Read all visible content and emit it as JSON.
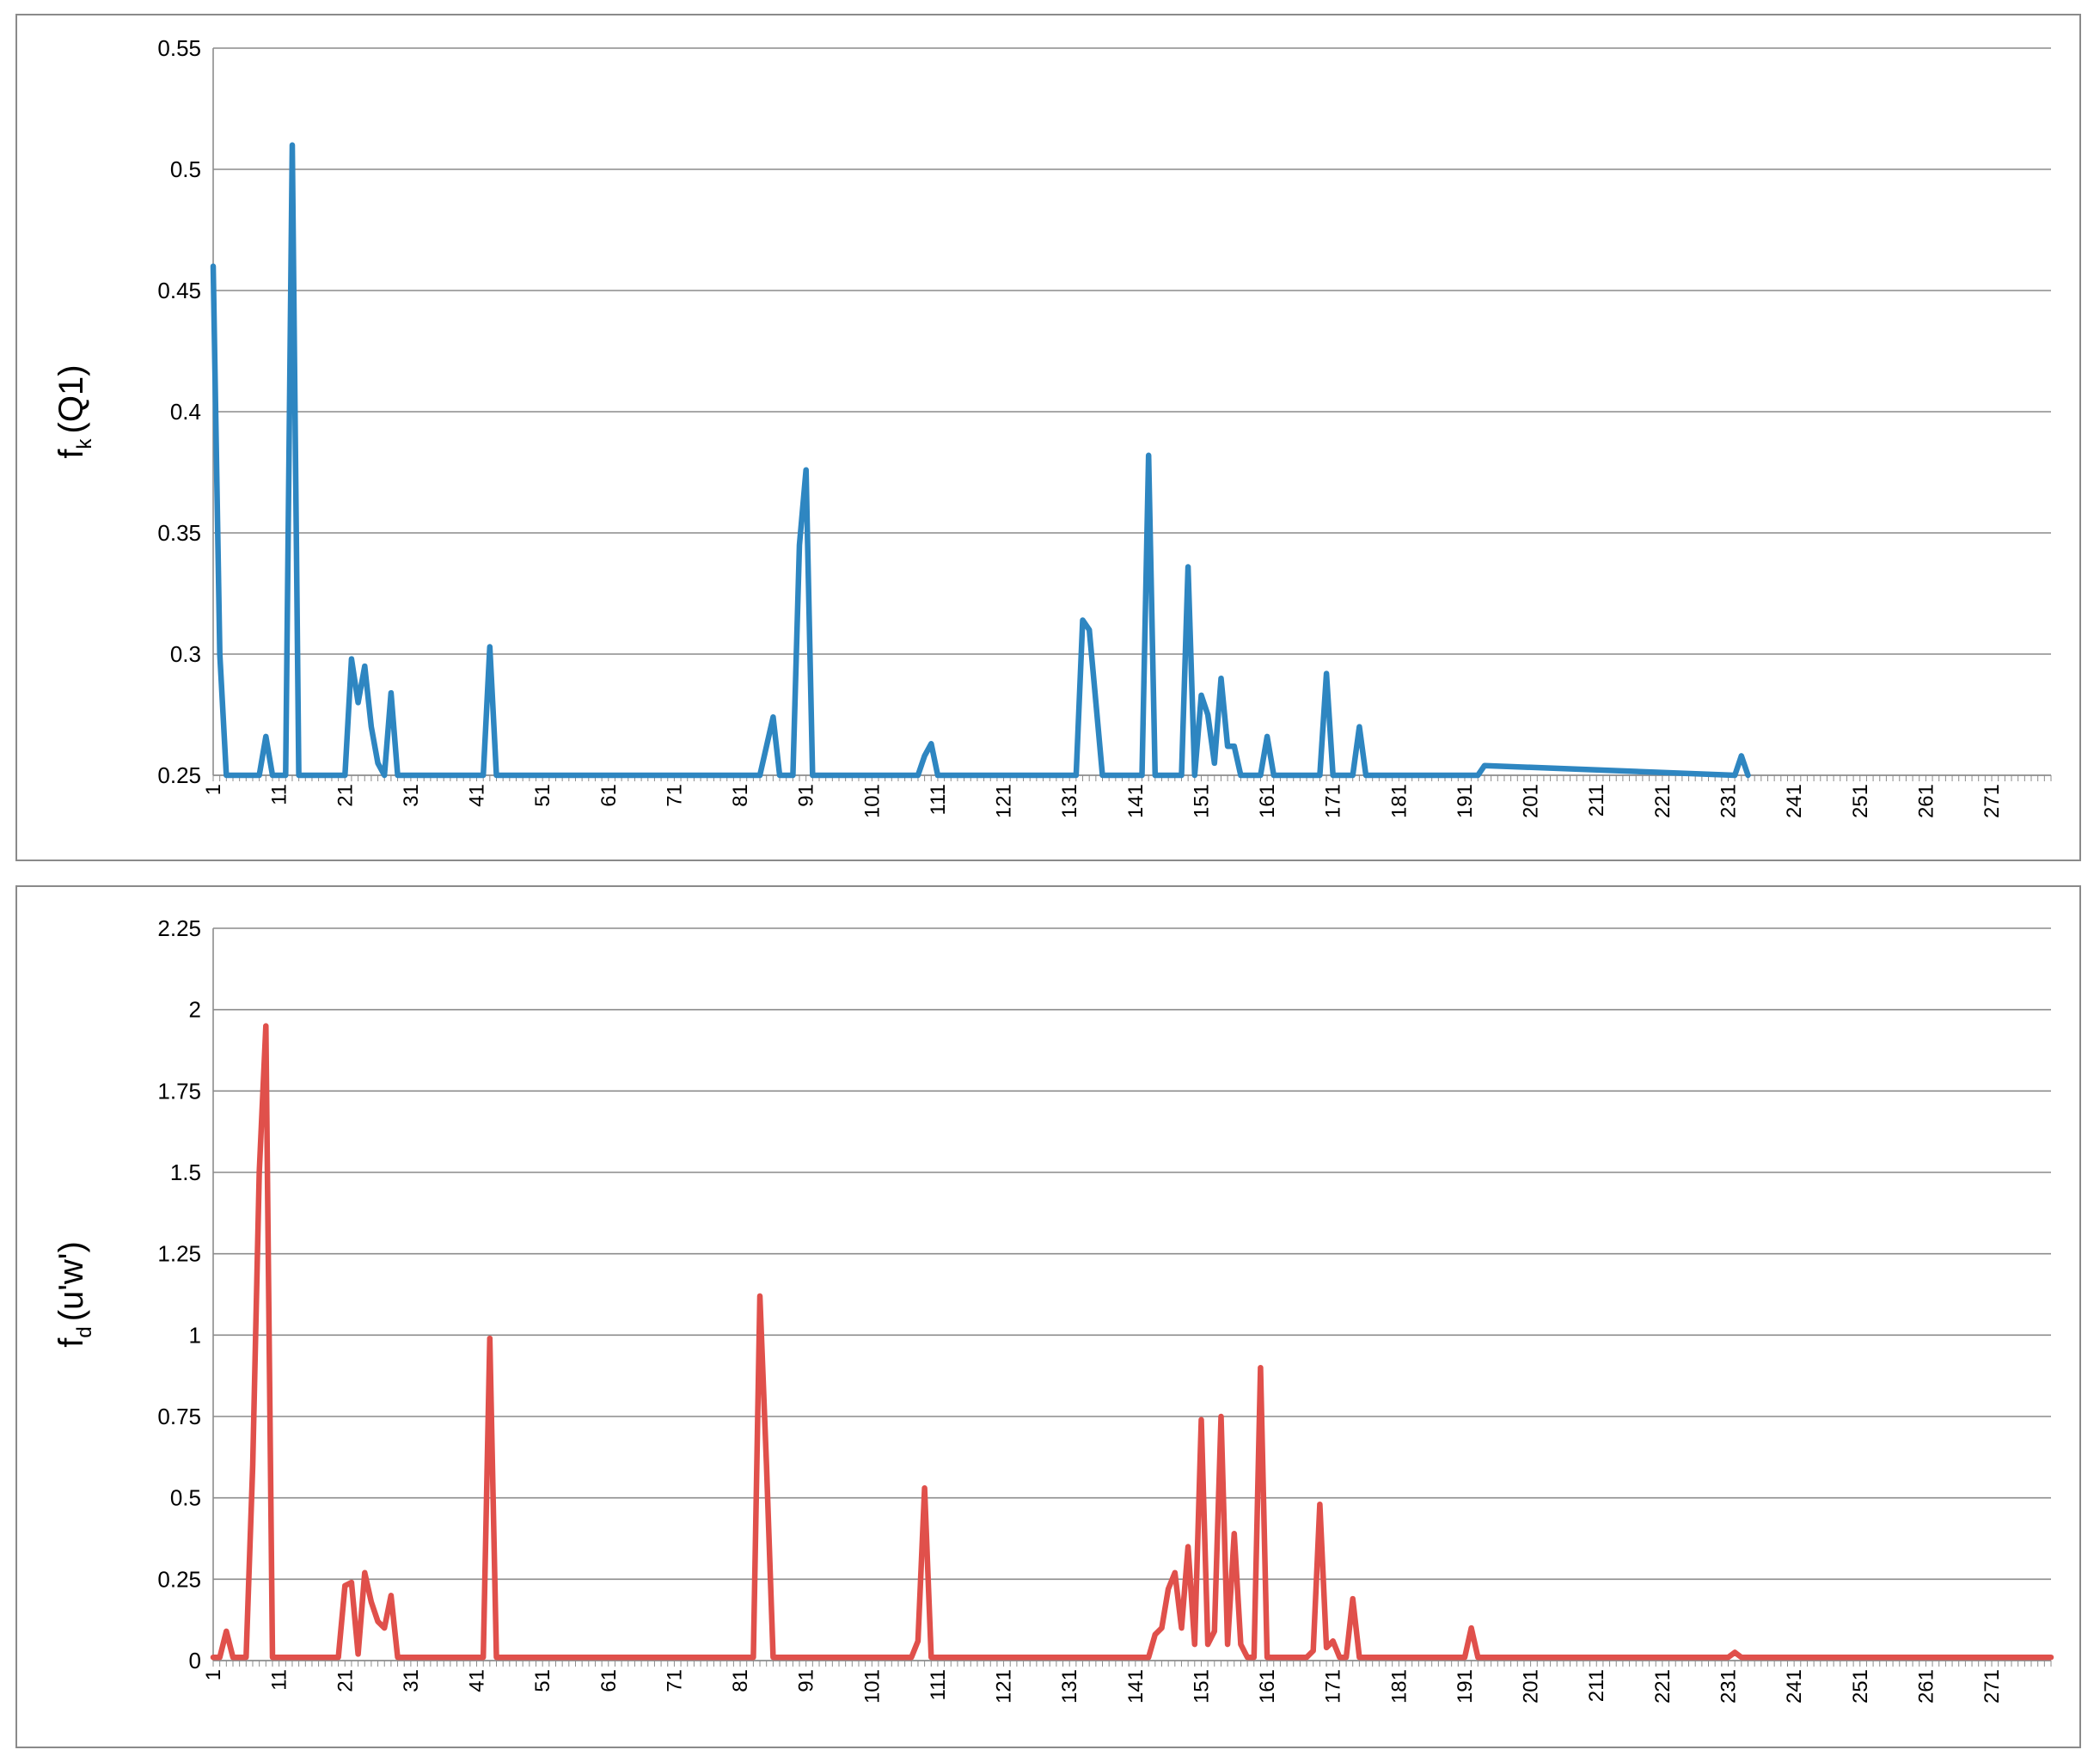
{
  "chart_data": [
    {
      "type": "line",
      "ylabel_main": "f",
      "ylabel_sub": "k",
      "ylabel_rest": "(Q1)",
      "color": "#2e86c1",
      "ylim": [
        0.25,
        0.55
      ],
      "yticks": [
        0.25,
        0.3,
        0.35,
        0.4,
        0.45,
        0.5,
        0.55
      ],
      "ytick_labels": [
        "0.25",
        "0.3",
        "0.35",
        "0.4",
        "0.45",
        "0.5",
        "0.55"
      ],
      "xlim": [
        1,
        280
      ],
      "xticks": [
        1,
        11,
        21,
        31,
        41,
        51,
        61,
        71,
        81,
        91,
        101,
        111,
        121,
        131,
        141,
        151,
        161,
        171,
        181,
        191,
        201,
        211,
        221,
        231,
        241,
        251,
        261,
        271
      ],
      "xtick_labels": [
        "1",
        "11",
        "21",
        "31",
        "41",
        "51",
        "61",
        "71",
        "81",
        "91",
        "101",
        "111",
        "121",
        "131",
        "141",
        "151",
        "161",
        "171",
        "181",
        "191",
        "201",
        "211",
        "221",
        "231",
        "241",
        "251",
        "261",
        "271"
      ],
      "grid": true,
      "series": [
        {
          "x": [
            1,
            2,
            3,
            8,
            9,
            10,
            12,
            13,
            14,
            21,
            22,
            23,
            24,
            25,
            26,
            27,
            28,
            29,
            42,
            43,
            44,
            84,
            85,
            86,
            87,
            89,
            90,
            91,
            92,
            108,
            109,
            110,
            111,
            132,
            133,
            134,
            135,
            136,
            142,
            143,
            144,
            148,
            149,
            150,
            151,
            152,
            153,
            154,
            155,
            156,
            157,
            158,
            160,
            161,
            162,
            169,
            170,
            171,
            174,
            175,
            176,
            193,
            194,
            232,
            233,
            234
          ],
          "y": [
            0.46,
            0.3,
            0.25,
            0.25,
            0.266,
            0.25,
            0.25,
            0.51,
            0.25,
            0.25,
            0.298,
            0.28,
            0.295,
            0.27,
            0.255,
            0.25,
            0.284,
            0.25,
            0.25,
            0.303,
            0.25,
            0.25,
            0.262,
            0.274,
            0.25,
            0.25,
            0.345,
            0.376,
            0.25,
            0.25,
            0.258,
            0.263,
            0.25,
            0.25,
            0.314,
            0.31,
            0.28,
            0.25,
            0.25,
            0.382,
            0.25,
            0.25,
            0.336,
            0.25,
            0.283,
            0.275,
            0.255,
            0.29,
            0.262,
            0.262,
            0.25,
            0.25,
            0.25,
            0.266,
            0.25,
            0.25,
            0.292,
            0.25,
            0.25,
            0.27,
            0.25,
            0.25,
            0.254,
            0.25,
            0.258,
            0.25
          ]
        }
      ]
    },
    {
      "type": "line",
      "ylabel_main": "f",
      "ylabel_sub": "d",
      "ylabel_rest": "(u'w')",
      "color": "#e0504b",
      "ylim": [
        0,
        2.25
      ],
      "yticks": [
        0,
        0.25,
        0.5,
        0.75,
        1,
        1.25,
        1.5,
        1.75,
        2,
        2.25
      ],
      "ytick_labels": [
        "0",
        "0.25",
        "0.5",
        "0.75",
        "1",
        "1.25",
        "1.5",
        "1.75",
        "2",
        "2.25"
      ],
      "xlim": [
        1,
        280
      ],
      "xticks": [
        1,
        11,
        21,
        31,
        41,
        51,
        61,
        71,
        81,
        91,
        101,
        111,
        121,
        131,
        141,
        151,
        161,
        171,
        181,
        191,
        201,
        211,
        221,
        231,
        241,
        251,
        261,
        271
      ],
      "xtick_labels": [
        "1",
        "11",
        "21",
        "31",
        "41",
        "51",
        "61",
        "71",
        "81",
        "91",
        "101",
        "111",
        "121",
        "131",
        "141",
        "151",
        "161",
        "171",
        "181",
        "191",
        "201",
        "211",
        "221",
        "231",
        "241",
        "251",
        "261",
        "271"
      ],
      "grid": true,
      "series": [
        {
          "x": [
            1,
            2,
            3,
            4,
            5,
            6,
            7,
            8,
            9,
            10,
            11,
            20,
            21,
            22,
            23,
            24,
            25,
            26,
            27,
            28,
            29,
            30,
            42,
            43,
            44,
            83,
            84,
            85,
            86,
            107,
            108,
            109,
            110,
            143,
            144,
            145,
            146,
            147,
            148,
            149,
            150,
            151,
            152,
            153,
            154,
            155,
            156,
            157,
            158,
            159,
            160,
            161,
            162,
            167,
            168,
            169,
            170,
            171,
            172,
            173,
            174,
            175,
            191,
            192,
            193,
            194,
            231,
            232,
            233,
            280
          ],
          "y": [
            0.01,
            0.01,
            0.09,
            0.01,
            0.01,
            0.01,
            0.6,
            1.5,
            1.95,
            0.01,
            0.01,
            0.01,
            0.23,
            0.24,
            0.02,
            0.27,
            0.18,
            0.12,
            0.1,
            0.2,
            0.01,
            0.01,
            0.01,
            0.99,
            0.01,
            0.01,
            1.12,
            0.6,
            0.01,
            0.01,
            0.06,
            0.53,
            0.01,
            0.01,
            0.08,
            0.1,
            0.22,
            0.27,
            0.1,
            0.35,
            0.05,
            0.74,
            0.05,
            0.09,
            0.75,
            0.05,
            0.39,
            0.05,
            0.01,
            0.01,
            0.9,
            0.01,
            0.01,
            0.01,
            0.03,
            0.48,
            0.04,
            0.06,
            0.01,
            0.01,
            0.19,
            0.01,
            0.01,
            0.1,
            0.01,
            0.01,
            0.01,
            0.025,
            0.01,
            0.01
          ]
        }
      ]
    }
  ]
}
